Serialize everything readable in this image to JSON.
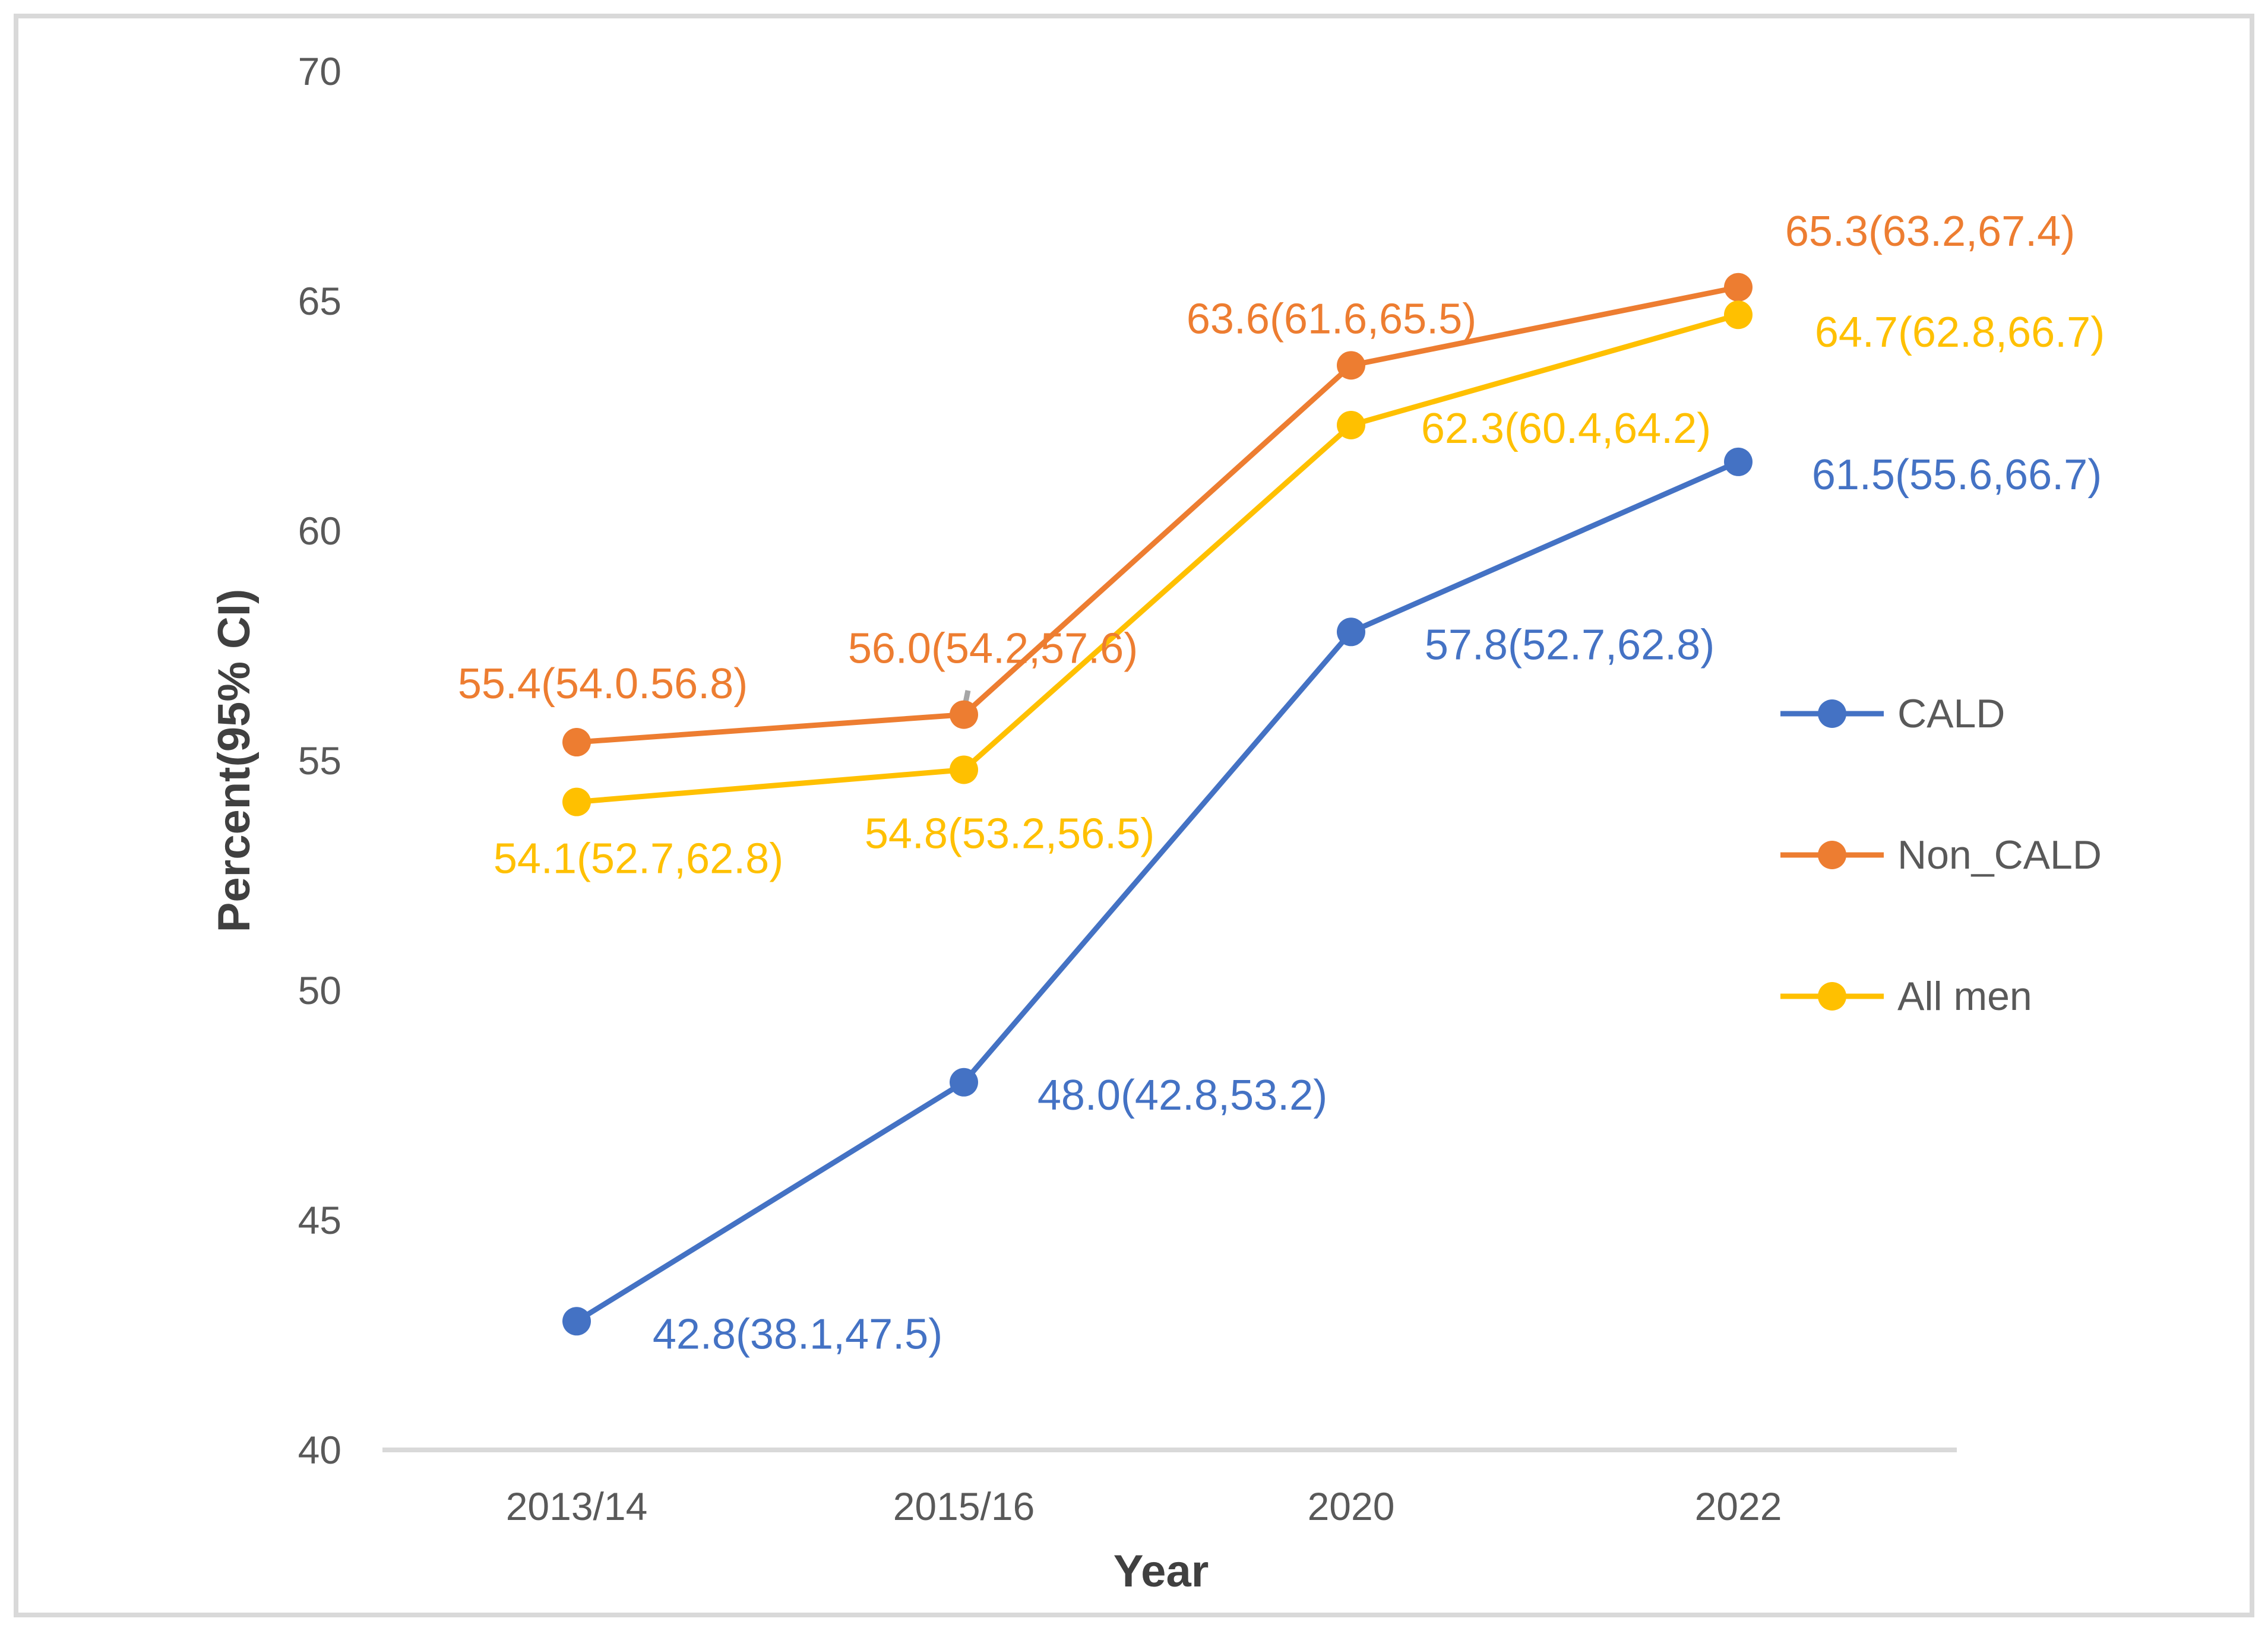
{
  "figure": {
    "background_color": "#FFFFFF",
    "border_color": "#D9D9D9",
    "axis_line_color": "#D9D9D9",
    "tick_text_color": "#595959",
    "axis_title_color": "#404040",
    "error_tick_color": "#A6A6A6"
  },
  "chart_data": {
    "type": "line",
    "title": "",
    "xlabel": "Year",
    "ylabel": "Percent(95% CI)",
    "categories": [
      "2013/14",
      "2015/16",
      "2020",
      "2022"
    ],
    "ylim": [
      40,
      70
    ],
    "yticks": [
      40,
      45,
      50,
      55,
      60,
      65,
      70
    ],
    "grid": false,
    "legend_position": "right-middle",
    "marker": "circle",
    "series": [
      {
        "name": "CALD",
        "color": "#4472C4",
        "values": [
          42.8,
          48.0,
          57.8,
          61.5
        ],
        "ci_low": [
          38.1,
          42.8,
          52.7,
          55.6
        ],
        "ci_high": [
          47.5,
          53.2,
          62.8,
          66.7
        ],
        "labels": [
          "42.8(38.1,47.5)",
          "48.0(42.8,53.2)",
          "57.8(52.7,62.8)",
          "61.5(55.6,66.7)"
        ]
      },
      {
        "name": "Non_CALD",
        "color": "#ED7D31",
        "values": [
          55.4,
          56.0,
          63.6,
          65.3
        ],
        "ci_low": [
          54.0,
          54.2,
          61.6,
          63.2
        ],
        "ci_high": [
          56.8,
          57.6,
          65.5,
          67.4
        ],
        "labels": [
          "55.4(54.0.56.8)",
          "56.0(54.2,57.6)",
          "63.6(61.6,65.5)",
          "65.3(63.2,67.4)"
        ]
      },
      {
        "name": "All men",
        "color": "#FFC000",
        "values": [
          54.1,
          54.8,
          62.3,
          64.7
        ],
        "ci_low": [
          52.7,
          53.2,
          60.4,
          62.8
        ],
        "ci_high": [
          62.8,
          56.5,
          64.2,
          66.7
        ],
        "labels": [
          "54.1(52.7,62.8)",
          "54.8(53.2,56.5)",
          "62.3(60.4,64.2)",
          "64.7(62.8,66.7)"
        ]
      }
    ],
    "legend_entries": [
      "CALD",
      "Non_CALD",
      "All men"
    ],
    "annotations": {
      "stray_error_tick": {
        "series": "Non_CALD",
        "category": "2015/16"
      }
    }
  }
}
